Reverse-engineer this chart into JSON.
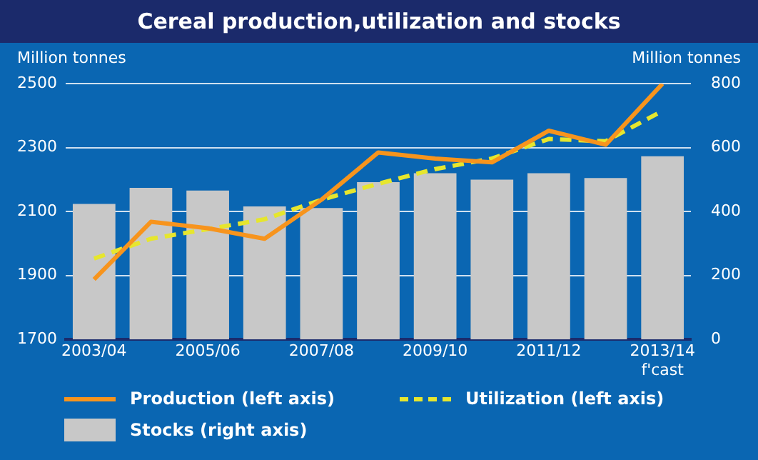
{
  "chart_data": {
    "type": "bar",
    "title": "Cereal production,utilization and stocks",
    "ylabel": "Million tonnes",
    "y2label": "Million tonnes",
    "categories": [
      "2003/04",
      null,
      "2005/06",
      null,
      "2007/08",
      null,
      "2009/10",
      null,
      "2011/12",
      null,
      "2013/14\nf'cast"
    ],
    "series": [
      {
        "name": "Production (left axis)",
        "type": "line",
        "color": "#f7941d",
        "line_style": "solid",
        "values": [
          1888,
          2068,
          2048,
          2015,
          2137,
          2285,
          2266,
          2254,
          2353,
          2309,
          2500
        ]
      },
      {
        "name": "Utilization (left axis)",
        "type": "line",
        "color": "#e6e62e",
        "line_style": "dashed",
        "values": [
          1953,
          2015,
          2045,
          2076,
          2137,
          2187,
          2233,
          2266,
          2327,
          2320,
          2415
        ]
      },
      {
        "name": "Stocks (right axis)",
        "axis": "y2",
        "color": "#c8c8c8",
        "values": [
          424,
          474,
          466,
          416,
          411,
          492,
          520,
          500,
          520,
          505,
          573
        ]
      }
    ],
    "ylim": [
      1700,
      2500
    ],
    "yticks": [
      1700,
      1900,
      2100,
      2300,
      2500
    ],
    "y2lim": [
      0,
      800
    ],
    "y2ticks": [
      0,
      200,
      400,
      600,
      800
    ],
    "grid": "y",
    "legend": "bottom",
    "marker": "none"
  }
}
